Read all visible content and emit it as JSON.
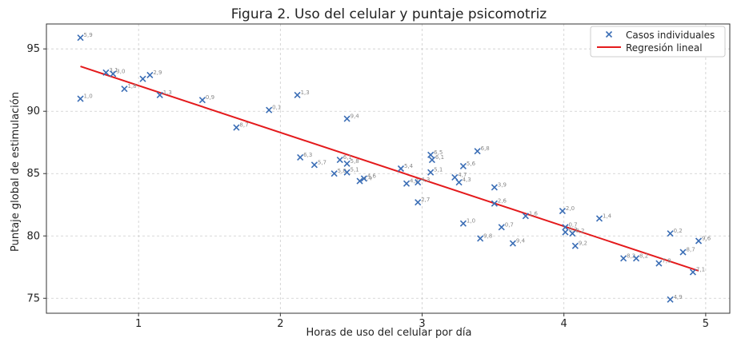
{
  "chart_data": {
    "type": "scatter",
    "title": "Figura 2. Uso del celular y puntaje psicomotriz",
    "xlabel": "Horas de uso del celular por día",
    "ylabel": "Puntaje global de estimulación",
    "xlim": [
      0.35,
      5.17
    ],
    "ylim": [
      73.8,
      97.0
    ],
    "x_ticks": [
      "1",
      "2",
      "3",
      "4",
      "5"
    ],
    "y_ticks": [
      "75",
      "80",
      "85",
      "90",
      "95"
    ],
    "grid": true,
    "legend_position": "top-right",
    "colors": {
      "points": "#3a6db5",
      "line": "#e41a1c",
      "grid": "#cccccc"
    },
    "series": [
      {
        "name": "Casos individuales",
        "marker": "x",
        "points": [
          {
            "x": 0.59,
            "y": 95.9,
            "label": "5,9"
          },
          {
            "x": 0.59,
            "y": 91.0,
            "label": "1,0"
          },
          {
            "x": 0.77,
            "y": 93.1,
            "label": "3,1"
          },
          {
            "x": 0.82,
            "y": 93.0,
            "label": "3,0"
          },
          {
            "x": 0.9,
            "y": 91.8,
            "label": "1,8"
          },
          {
            "x": 1.03,
            "y": 92.6,
            "label": ""
          },
          {
            "x": 1.08,
            "y": 92.9,
            "label": "2,9"
          },
          {
            "x": 1.15,
            "y": 91.3,
            "label": "1,3"
          },
          {
            "x": 1.45,
            "y": 90.9,
            "label": "0,9"
          },
          {
            "x": 1.69,
            "y": 88.7,
            "label": "8,7"
          },
          {
            "x": 1.92,
            "y": 90.1,
            "label": "0,1"
          },
          {
            "x": 2.12,
            "y": 91.3,
            "label": "1,3"
          },
          {
            "x": 2.14,
            "y": 86.3,
            "label": "6,3"
          },
          {
            "x": 2.24,
            "y": 85.7,
            "label": "5,7"
          },
          {
            "x": 2.38,
            "y": 85.0,
            "label": "5,0"
          },
          {
            "x": 2.42,
            "y": 86.1,
            "label": "6,1"
          },
          {
            "x": 2.47,
            "y": 85.8,
            "label": "5,8"
          },
          {
            "x": 2.47,
            "y": 85.1,
            "label": "5,1"
          },
          {
            "x": 2.47,
            "y": 89.4,
            "label": "9,4"
          },
          {
            "x": 2.56,
            "y": 84.4,
            "label": "4,4"
          },
          {
            "x": 2.59,
            "y": 84.6,
            "label": "4,6"
          },
          {
            "x": 2.85,
            "y": 85.4,
            "label": "5,4"
          },
          {
            "x": 2.89,
            "y": 84.2,
            "label": "4,2"
          },
          {
            "x": 2.97,
            "y": 84.3,
            "label": "4,3"
          },
          {
            "x": 2.97,
            "y": 82.7,
            "label": "2,7"
          },
          {
            "x": 3.06,
            "y": 86.5,
            "label": "6,5"
          },
          {
            "x": 3.07,
            "y": 86.1,
            "label": "6,1"
          },
          {
            "x": 3.06,
            "y": 85.1,
            "label": "5,1"
          },
          {
            "x": 3.23,
            "y": 84.7,
            "label": "4,7"
          },
          {
            "x": 3.26,
            "y": 84.3,
            "label": "4,3"
          },
          {
            "x": 3.29,
            "y": 85.6,
            "label": "5,6"
          },
          {
            "x": 3.29,
            "y": 81.0,
            "label": "1,0"
          },
          {
            "x": 3.39,
            "y": 86.8,
            "label": "6,8"
          },
          {
            "x": 3.41,
            "y": 79.8,
            "label": "9,8"
          },
          {
            "x": 3.51,
            "y": 83.9,
            "label": "3,9"
          },
          {
            "x": 3.51,
            "y": 82.6,
            "label": "2,6"
          },
          {
            "x": 3.56,
            "y": 80.7,
            "label": "0,7"
          },
          {
            "x": 3.64,
            "y": 79.4,
            "label": "9,4"
          },
          {
            "x": 3.73,
            "y": 81.6,
            "label": "1,6"
          },
          {
            "x": 3.99,
            "y": 82.0,
            "label": "2,0"
          },
          {
            "x": 4.01,
            "y": 80.7,
            "label": "0,7"
          },
          {
            "x": 4.01,
            "y": 80.3,
            "label": "0,3"
          },
          {
            "x": 4.06,
            "y": 80.2,
            "label": "0,2"
          },
          {
            "x": 4.08,
            "y": 79.2,
            "label": "9,2"
          },
          {
            "x": 4.25,
            "y": 81.4,
            "label": "1,4"
          },
          {
            "x": 4.42,
            "y": 78.2,
            "label": "8,2"
          },
          {
            "x": 4.51,
            "y": 78.2,
            "label": "8,2"
          },
          {
            "x": 4.67,
            "y": 77.8,
            "label": "7,8"
          },
          {
            "x": 4.75,
            "y": 80.2,
            "label": "0,2"
          },
          {
            "x": 4.75,
            "y": 74.9,
            "label": "4,9"
          },
          {
            "x": 4.84,
            "y": 78.7,
            "label": "8,7"
          },
          {
            "x": 4.91,
            "y": 77.1,
            "label": "7,1"
          },
          {
            "x": 4.95,
            "y": 79.6,
            "label": "9,6"
          }
        ]
      },
      {
        "name": "Regresión lineal",
        "marker": "line",
        "points": [
          {
            "x": 0.59,
            "y": 93.6
          },
          {
            "x": 4.95,
            "y": 77.2
          }
        ]
      }
    ]
  }
}
